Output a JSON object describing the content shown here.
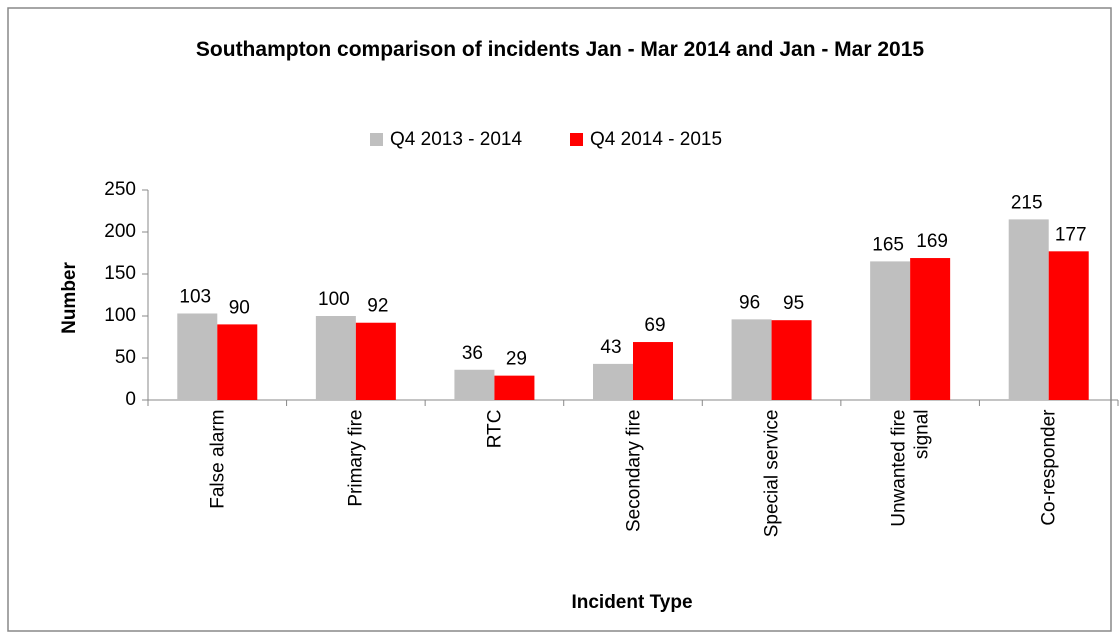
{
  "chart_data": {
    "type": "bar",
    "title": "Southampton comparison of incidents Jan - Mar 2014 and Jan - Mar 2015",
    "x_label": "Incident Type",
    "y_label": "Number",
    "categories": [
      "False alarm",
      "Primary fire",
      "RTC",
      "Secondary fire",
      "Special service",
      "Unwanted fire signal",
      "Co-responder"
    ],
    "series": [
      {
        "name": "Q4 2013 - 2014",
        "color": "#bfbfbf",
        "values": [
          103,
          100,
          36,
          43,
          96,
          165,
          215
        ]
      },
      {
        "name": "Q4 2014 - 2015",
        "color": "#ff0000",
        "values": [
          90,
          92,
          29,
          69,
          95,
          169,
          177
        ]
      }
    ],
    "ylim": [
      0,
      250
    ],
    "yticks": [
      0,
      50,
      100,
      150,
      200,
      250
    ],
    "grid": false,
    "legend": "top"
  }
}
